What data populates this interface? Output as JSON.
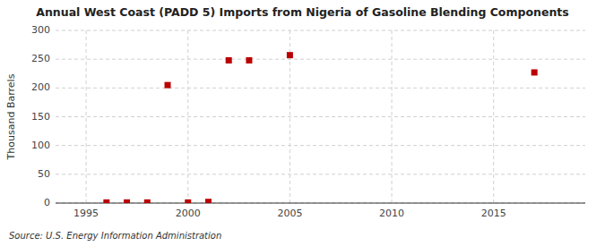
{
  "chart_data": {
    "type": "scatter",
    "title": "Annual West Coast (PADD 5) Imports from Nigeria of Gasoline Blending Components",
    "y_label": "Thousand Barrels",
    "source": "Source: U.S. Energy Information Administration",
    "x": [
      1996,
      1997,
      1998,
      1999,
      2000,
      2001,
      2002,
      2003,
      2005,
      2017
    ],
    "values": [
      1,
      1,
      1,
      205,
      1,
      2,
      248,
      248,
      257,
      227
    ],
    "color": "#bb0000",
    "marker": "square",
    "xlim": [
      1993.5,
      2019.5
    ],
    "ylim": [
      0,
      300
    ],
    "xticks": [
      1995,
      2000,
      2005,
      2010,
      2015
    ],
    "yticks": [
      0,
      50,
      100,
      150,
      200,
      250,
      300
    ],
    "grid": true
  }
}
